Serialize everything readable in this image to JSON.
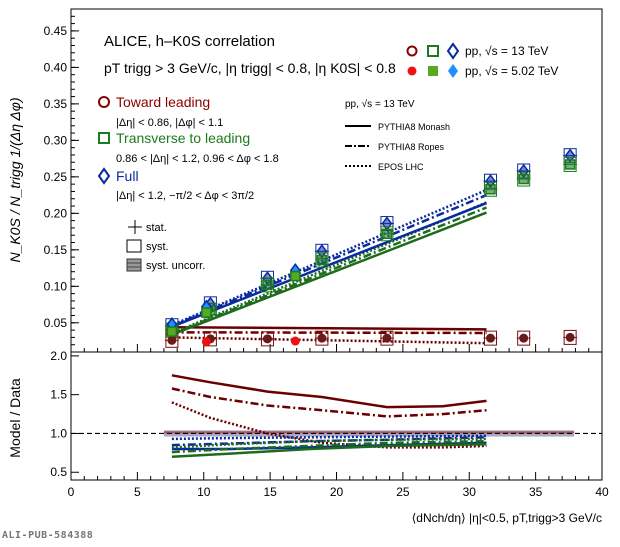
{
  "chart_data": [
    {
      "type": "scatter",
      "panel": "upper",
      "title": "ALICE, h–K0S correlation",
      "cuts_label": "pT trigg > 3 GeV/c, |η trigg| < 0.8, |η K0S| < 0.8",
      "ylabel": "N_K0S / N_trigg 1/(Δη Δφ)",
      "ylim": [
        0.01,
        0.48
      ],
      "xlim": [
        0,
        40
      ],
      "yticks": [
        "0.05",
        "0.10",
        "0.15",
        "0.20",
        "0.25",
        "0.30",
        "0.35",
        "0.40",
        "0.45"
      ],
      "regions": {
        "toward": {
          "label": "Toward leading",
          "cut": "|Δη| < 0.86, |Δφ| < 1.1",
          "color": "#8b0000"
        },
        "transverse": {
          "label": "Transverse to leading",
          "cut": "0.86 < |Δη| < 1.2, 0.96 < Δφ < 1.8",
          "color": "#1e7a1e"
        },
        "full": {
          "label": "Full",
          "cut": "|Δη| < 1.2, −π/2 < Δφ < 3π/2",
          "color": "#0a2aa0"
        }
      },
      "energy_legend": [
        {
          "label": "pp, √s = 13 TeV",
          "filled": false
        },
        {
          "label": "pp, √s = 5.02 TeV",
          "filled": true
        }
      ],
      "uncertainty_legend": [
        "stat.",
        "syst.",
        "syst. uncorr."
      ],
      "model_legend_title": "pp, √s = 13 TeV",
      "models": [
        "PYTHIA8 Monash",
        "PYTHIA8 Ropes",
        "EPOS LHC"
      ],
      "series": [
        {
          "region": "full",
          "energy": "13 TeV",
          "x": [
            7.6,
            10.5,
            14.8,
            18.9,
            23.8,
            31.6,
            34.1,
            37.6
          ],
          "y": [
            0.046,
            0.076,
            0.111,
            0.148,
            0.186,
            0.244,
            0.258,
            0.279
          ]
        },
        {
          "region": "transverse",
          "energy": "13 TeV",
          "x": [
            7.6,
            10.5,
            14.8,
            18.9,
            23.8,
            31.6,
            34.1,
            37.6
          ],
          "y": [
            0.04,
            0.067,
            0.102,
            0.136,
            0.172,
            0.233,
            0.247,
            0.267
          ]
        },
        {
          "region": "toward",
          "energy": "13 TeV",
          "x": [
            7.6,
            10.5,
            14.8,
            18.9,
            23.8,
            31.6,
            34.1,
            37.6
          ],
          "y": [
            0.026,
            0.028,
            0.028,
            0.029,
            0.029,
            0.029,
            0.029,
            0.03
          ]
        },
        {
          "region": "full",
          "energy": "5.02 TeV",
          "x": [
            7.6,
            10.2,
            16.9
          ],
          "y": [
            0.048,
            0.072,
            0.122
          ]
        },
        {
          "region": "transverse",
          "energy": "5.02 TeV",
          "x": [
            7.6,
            10.2,
            16.9
          ],
          "y": [
            0.038,
            0.064,
            0.114
          ]
        },
        {
          "region": "toward",
          "energy": "5.02 TeV",
          "x": [
            10.2,
            16.9
          ],
          "y": [
            0.024,
            0.025
          ]
        }
      ],
      "model_curves": [
        {
          "region": "toward",
          "model": "PYTHIA8 Monash",
          "x": [
            7.5,
            31.3
          ],
          "y": [
            0.044,
            0.041
          ]
        },
        {
          "region": "toward",
          "model": "PYTHIA8 Ropes",
          "x": [
            7.5,
            31.3
          ],
          "y": [
            0.037,
            0.036
          ]
        },
        {
          "region": "toward",
          "model": "EPOS LHC",
          "x": [
            7.5,
            31.3
          ],
          "y": [
            0.03,
            0.022
          ]
        },
        {
          "region": "transverse",
          "model": "PYTHIA8 Monash",
          "x": [
            7.5,
            31.3
          ],
          "y": [
            0.033,
            0.201
          ]
        },
        {
          "region": "transverse",
          "model": "PYTHIA8 Ropes",
          "x": [
            7.5,
            31.3
          ],
          "y": [
            0.034,
            0.208
          ]
        },
        {
          "region": "transverse",
          "model": "EPOS LHC",
          "x": [
            7.5,
            31.3
          ],
          "y": [
            0.035,
            0.215
          ]
        },
        {
          "region": "full",
          "model": "PYTHIA8 Monash",
          "x": [
            7.5,
            31.3
          ],
          "y": [
            0.044,
            0.214
          ]
        },
        {
          "region": "full",
          "model": "PYTHIA8 Ropes",
          "x": [
            7.5,
            31.3
          ],
          "y": [
            0.045,
            0.225
          ]
        },
        {
          "region": "full",
          "model": "EPOS LHC",
          "x": [
            7.5,
            31.3
          ],
          "y": [
            0.046,
            0.232
          ]
        }
      ]
    },
    {
      "type": "line",
      "panel": "lower",
      "ylabel": "Model / Data",
      "xlabel": "⟨dNch/dη⟩ |η|<0.5, pT,trigg>3 GeV/c",
      "ylim": [
        0.4,
        2.05
      ],
      "xlim": [
        0,
        40
      ],
      "xticks": [
        "0",
        "5",
        "10",
        "15",
        "20",
        "25",
        "30",
        "35",
        "40"
      ],
      "yticks": [
        "0.5",
        "1.0",
        "1.5",
        "2.0"
      ],
      "reference_line": 1.0,
      "syst_band": [
        0.96,
        1.04
      ],
      "ratio_curves": [
        {
          "region": "toward",
          "model": "PYTHIA8 Monash",
          "x": [
            7.6,
            10.5,
            14.8,
            18.9,
            23.8,
            28.0,
            31.3
          ],
          "y": [
            1.75,
            1.66,
            1.54,
            1.47,
            1.34,
            1.35,
            1.42
          ]
        },
        {
          "region": "toward",
          "model": "PYTHIA8 Ropes",
          "x": [
            7.6,
            10.5,
            14.8,
            18.9,
            23.8,
            28.0,
            31.3
          ],
          "y": [
            1.58,
            1.47,
            1.36,
            1.3,
            1.22,
            1.25,
            1.3
          ]
        },
        {
          "region": "toward",
          "model": "EPOS LHC",
          "x": [
            7.6,
            10.5,
            14.8,
            18.9,
            23.8,
            28.0,
            31.3
          ],
          "y": [
            1.4,
            1.2,
            1.0,
            0.88,
            0.82,
            0.82,
            0.84
          ]
        },
        {
          "region": "full",
          "model": "PYTHIA8 Monash",
          "x": [
            7.6,
            12.0,
            18.0,
            24.0,
            31.3
          ],
          "y": [
            0.8,
            0.8,
            0.82,
            0.85,
            0.88
          ]
        },
        {
          "region": "full",
          "model": "PYTHIA8 Ropes",
          "x": [
            7.6,
            12.0,
            18.0,
            24.0,
            31.3
          ],
          "y": [
            0.85,
            0.87,
            0.9,
            0.92,
            0.95
          ]
        },
        {
          "region": "full",
          "model": "EPOS LHC",
          "x": [
            7.6,
            12.0,
            18.0,
            24.0,
            31.3
          ],
          "y": [
            0.93,
            0.94,
            0.95,
            0.96,
            0.97
          ]
        },
        {
          "region": "transverse",
          "model": "PYTHIA8 Monash",
          "x": [
            7.6,
            12.0,
            18.0,
            24.0,
            31.3
          ],
          "y": [
            0.7,
            0.74,
            0.8,
            0.84,
            0.86
          ]
        },
        {
          "region": "transverse",
          "model": "PYTHIA8 Ropes",
          "x": [
            7.6,
            12.0,
            18.0,
            24.0,
            31.3
          ],
          "y": [
            0.76,
            0.8,
            0.84,
            0.88,
            0.9
          ]
        },
        {
          "region": "transverse",
          "model": "EPOS LHC",
          "x": [
            7.6,
            12.0,
            18.0,
            24.0,
            31.3
          ],
          "y": [
            0.82,
            0.86,
            0.9,
            0.92,
            0.93
          ]
        }
      ]
    }
  ],
  "footer": "ALI-PUB-584388"
}
